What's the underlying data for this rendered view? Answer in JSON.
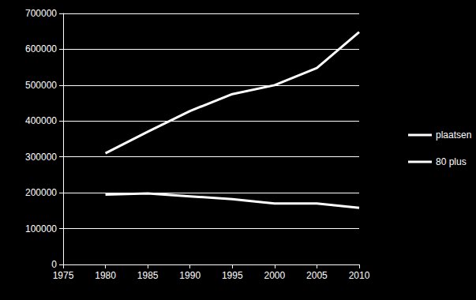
{
  "chart_data": {
    "type": "line",
    "x": [
      1980,
      1985,
      1990,
      1995,
      2000,
      2005,
      2010
    ],
    "series": [
      {
        "name": "plaatsen",
        "color": "#ffffff",
        "values": [
          195000,
          198000,
          190000,
          182000,
          170000,
          170000,
          158000
        ]
      },
      {
        "name": "80 plus",
        "color": "#ffffff",
        "values": [
          310000,
          370000,
          428000,
          475000,
          500000,
          548000,
          648000
        ]
      }
    ],
    "xlim": [
      1975,
      2010
    ],
    "xticks": [
      1975,
      1980,
      1985,
      1990,
      1995,
      2000,
      2005,
      2010
    ],
    "ylim": [
      0,
      700000
    ],
    "yticks": [
      0,
      100000,
      200000,
      300000,
      400000,
      500000,
      600000,
      700000
    ],
    "grid": true,
    "legend": "right"
  }
}
